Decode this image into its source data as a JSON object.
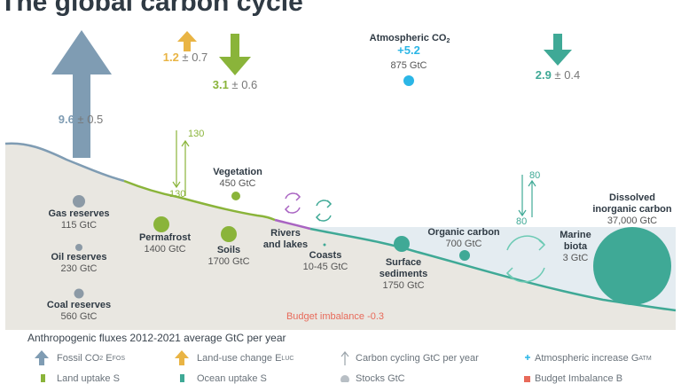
{
  "title": "The global carbon cycle",
  "flux": {
    "fossil": {
      "value": "9.6",
      "pm": "0.5"
    },
    "luc": {
      "value": "1.2",
      "pm": "0.7"
    },
    "land": {
      "value": "3.1",
      "pm": "0.6"
    },
    "ocean": {
      "value": "2.9",
      "pm": "0.4"
    },
    "atm": {
      "label": "Atmospheric CO",
      "sub": "2",
      "value": "+5.2",
      "stock": "875 GtC"
    }
  },
  "pm_sign": "±",
  "cycling": {
    "land_down": "130",
    "land_up": "130",
    "ocean_down": "80",
    "ocean_up": "80"
  },
  "stocks": {
    "gas": {
      "name": "Gas reserves",
      "value": "115 GtC"
    },
    "oil": {
      "name": "Oil reserves",
      "value": "230 GtC"
    },
    "coal": {
      "name": "Coal reserves",
      "value": "560 GtC"
    },
    "permafrost": {
      "name": "Permafrost",
      "value": "1400 GtC"
    },
    "vegetation": {
      "name": "Vegetation",
      "value": "450 GtC"
    },
    "soils": {
      "name": "Soils",
      "value": "1700 GtC"
    },
    "rivers": {
      "name1": "Rivers",
      "name2": "and lakes"
    },
    "coasts": {
      "name": "Coasts",
      "value": "10-45 GtC"
    },
    "surface_sediments": {
      "name1": "Surface",
      "name2": "sediments",
      "value": "1750 GtC"
    },
    "organic_carbon": {
      "name": "Organic carbon",
      "value": "700 GtC"
    },
    "marine_biota": {
      "name1": "Marine",
      "name2": "biota",
      "value": "3 GtC"
    },
    "dic": {
      "name1": "Dissolved",
      "name2": "inorganic carbon",
      "value": "37,000 GtC"
    }
  },
  "budget_imbalance": "Budget imbalance -0.3",
  "legend": {
    "title": "Anthropogenic fluxes 2012-2021 average GtC per year",
    "fossil": "Fossil CO",
    "fossil_sub": "2",
    "fossil_sym": "E",
    "fossil_sym_sub": "FOS",
    "luc": "Land-use change E",
    "luc_sub": "LUC",
    "cycling": "Carbon cycling GtC per year",
    "atm": "Atmospheric increase G",
    "atm_sub": "ATM",
    "land": "Land uptake S",
    "ocean": "Ocean uptake S",
    "stocks": "Stocks GtC",
    "bim": "Budget Imbalance B"
  },
  "colors": {
    "fossil": "#7f9cb3",
    "luc": "#e9b444",
    "land": "#8ab43a",
    "ocean": "#3fa996",
    "atm": "#2bb6e6",
    "bim": "#e86a5a",
    "stock_gray": "#8c9aa6",
    "stock_land": "#8ab43a",
    "stock_ocean": "#3fa996"
  }
}
